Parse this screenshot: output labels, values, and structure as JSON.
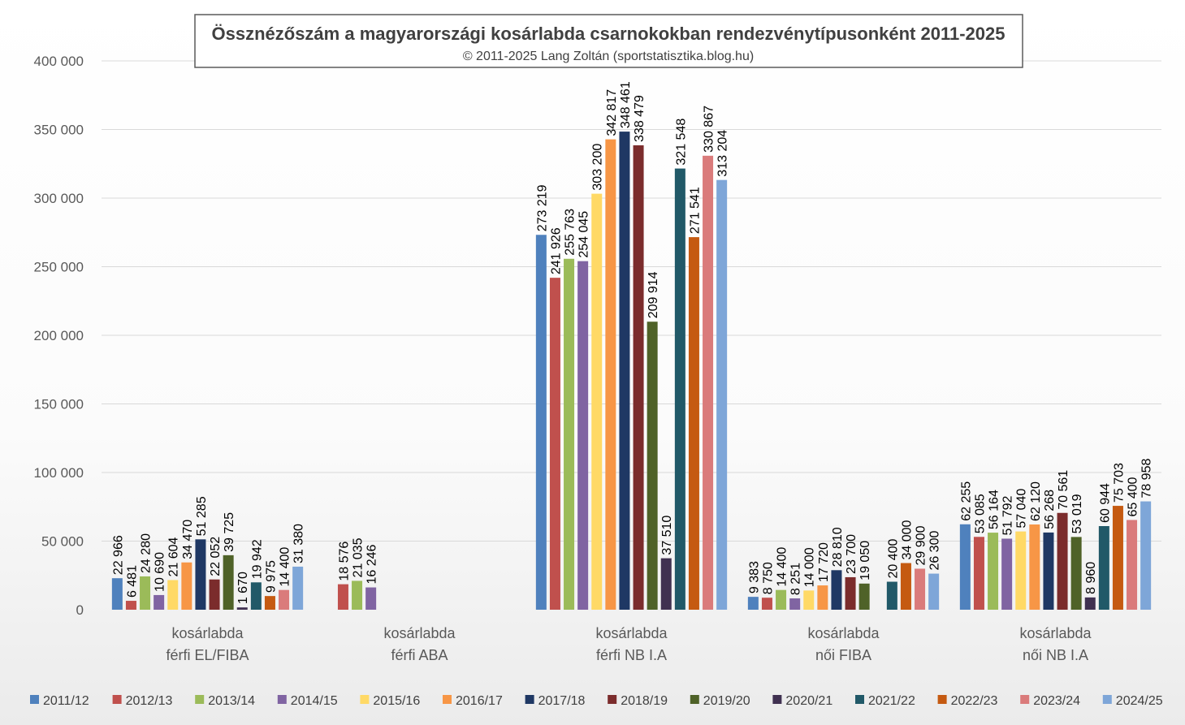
{
  "chart_data": {
    "type": "bar",
    "title": "Össznézőszám a magyarországi kosárlabda csarnokokban rendezvénytípusonként 2011-2025",
    "subtitle": "© 2011-2025 Lang Zoltán (sportstatisztika.blog.hu)",
    "xlabel": "",
    "ylabel": "",
    "ylim": [
      0,
      400000
    ],
    "yticks": [
      0,
      50000,
      100000,
      150000,
      200000,
      250000,
      300000,
      350000,
      400000
    ],
    "ytick_labels": [
      "0",
      "50 000",
      "100 000",
      "150 000",
      "200 000",
      "250 000",
      "300 000",
      "350 000",
      "400 000"
    ],
    "grid": true,
    "legend_position": "bottom",
    "categories": [
      [
        "kosárlabda",
        "férfi EL/FIBA"
      ],
      [
        "kosárlabda",
        "férfi ABA"
      ],
      [
        "kosárlabda",
        "férfi NB I.A"
      ],
      [
        "kosárlabda",
        "női FIBA"
      ],
      [
        "kosárlabda",
        "női NB I.A"
      ]
    ],
    "series": [
      {
        "name": "2011/12",
        "color": "#4f81bd",
        "values": [
          22966,
          null,
          273219,
          9383,
          62255
        ],
        "labels": [
          "22 966",
          "",
          "273 219",
          "9 383",
          "62 255"
        ]
      },
      {
        "name": "2012/13",
        "color": "#c0504d",
        "values": [
          6481,
          18576,
          241926,
          8750,
          53085
        ],
        "labels": [
          "6 481",
          "18 576",
          "241 926",
          "8 750",
          "53 085"
        ]
      },
      {
        "name": "2013/14",
        "color": "#9bbb59",
        "values": [
          24280,
          21035,
          255763,
          14400,
          56164
        ],
        "labels": [
          "24 280",
          "21 035",
          "255 763",
          "14 400",
          "56 164"
        ]
      },
      {
        "name": "2014/15",
        "color": "#8064a2",
        "values": [
          10690,
          16246,
          254045,
          8251,
          51792
        ],
        "labels": [
          "10 690",
          "16 246",
          "254 045",
          "8 251",
          "51 792"
        ]
      },
      {
        "name": "2015/16",
        "color": "#ffd966",
        "values": [
          21604,
          null,
          303200,
          14000,
          57040
        ],
        "labels": [
          "21 604",
          "",
          "303 200",
          "14 000",
          "57 040"
        ]
      },
      {
        "name": "2016/17",
        "color": "#f79646",
        "values": [
          34470,
          null,
          342817,
          17720,
          62120
        ],
        "labels": [
          "34 470",
          "",
          "342 817",
          "17 720",
          "62 120"
        ]
      },
      {
        "name": "2017/18",
        "color": "#1f3864",
        "values": [
          51285,
          null,
          348461,
          28810,
          56268
        ],
        "labels": [
          "51 285",
          "",
          "348 461",
          "28 810",
          "56 268"
        ]
      },
      {
        "name": "2018/19",
        "color": "#7b2c2c",
        "values": [
          22052,
          null,
          338479,
          23700,
          70561
        ],
        "labels": [
          "22 052",
          "",
          "338 479",
          "23 700",
          "70 561"
        ]
      },
      {
        "name": "2019/20",
        "color": "#4f6228",
        "values": [
          39725,
          null,
          209914,
          19050,
          53019
        ],
        "labels": [
          "39 725",
          "",
          "209 914",
          "19 050",
          "53 019"
        ]
      },
      {
        "name": "2020/21",
        "color": "#403151",
        "values": [
          1670,
          null,
          37510,
          null,
          8960
        ],
        "labels": [
          "1 670",
          "",
          "37 510",
          "",
          "8 960"
        ]
      },
      {
        "name": "2021/22",
        "color": "#215968",
        "values": [
          19942,
          null,
          321548,
          20400,
          60944
        ],
        "labels": [
          "19 942",
          "",
          "321 548",
          "20 400",
          "60 944"
        ]
      },
      {
        "name": "2022/23",
        "color": "#c55a11",
        "values": [
          9975,
          null,
          271541,
          34000,
          75703
        ],
        "labels": [
          "9 975",
          "",
          "271 541",
          "34 000",
          "75 703"
        ]
      },
      {
        "name": "2023/24",
        "color": "#da7b7b",
        "values": [
          14400,
          null,
          330867,
          29900,
          65400
        ],
        "labels": [
          "14 400",
          "",
          "330 867",
          "29 900",
          "65 400"
        ]
      },
      {
        "name": "2024/25",
        "color": "#7ea6d8",
        "values": [
          31380,
          null,
          313204,
          26300,
          78958
        ],
        "labels": [
          "31 380",
          "",
          "313 204",
          "26 300",
          "78 958"
        ]
      }
    ]
  }
}
